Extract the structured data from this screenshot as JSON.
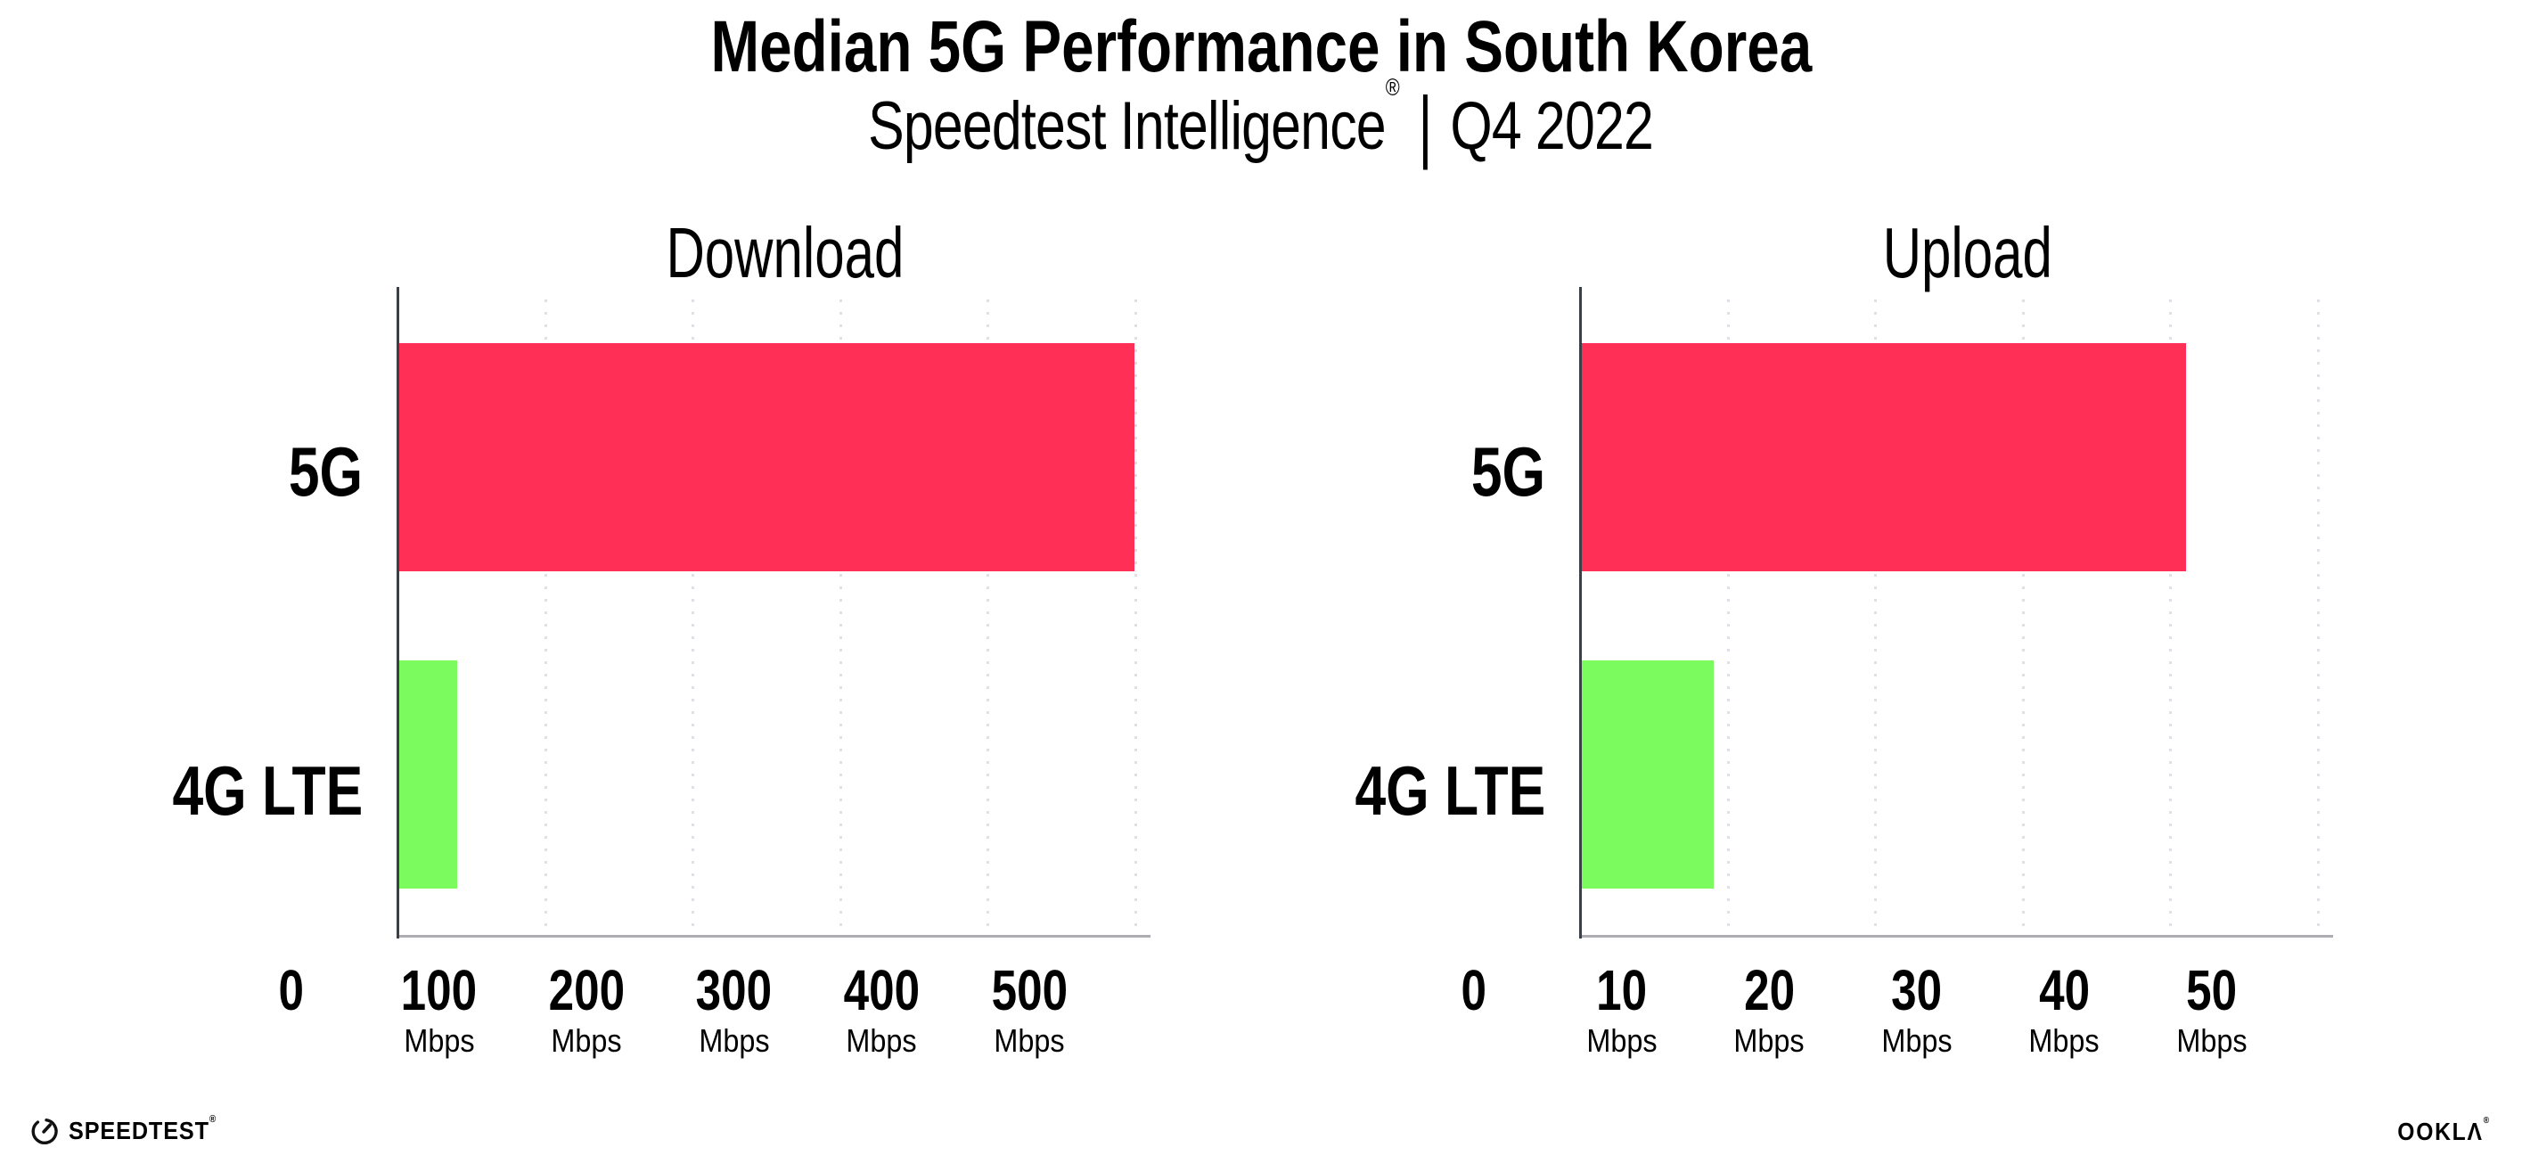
{
  "page": {
    "background": "#FFFFFF"
  },
  "header": {
    "title": "Median 5G Performance in South Korea",
    "subtitle_brand": "Speedtest Intelligence",
    "subtitle_reg": "®",
    "subtitle_divider": "|",
    "subtitle_period": "Q4 2022"
  },
  "colors": {
    "bar_5g": "#FF2F56",
    "bar_4g": "#7CFB5E",
    "gridline": "#DFDFE7",
    "axis_y": "#3A4046",
    "axis_x": "#ACACB2",
    "text": "#000000",
    "page_bg": "#FFFFFF"
  },
  "chart_data": [
    {
      "type": "bar",
      "orientation": "horizontal",
      "title": "Download",
      "categories": [
        "5G",
        "4G LTE"
      ],
      "values": [
        499,
        40
      ],
      "unit": "Mbps",
      "xlim": [
        0,
        500
      ],
      "xlabel": "",
      "ylabel": "",
      "grid": "dotted-vertical",
      "legend": "none",
      "bar_colors": [
        "#FF2F56",
        "#7CFB5E"
      ],
      "ticks": [
        {
          "label": "0",
          "unit": ""
        },
        {
          "label": "100",
          "unit": "Mbps"
        },
        {
          "label": "200",
          "unit": "Mbps"
        },
        {
          "label": "300",
          "unit": "Mbps"
        },
        {
          "label": "400",
          "unit": "Mbps"
        },
        {
          "label": "500",
          "unit": "Mbps"
        }
      ]
    },
    {
      "type": "bar",
      "orientation": "horizontal",
      "title": "Upload",
      "categories": [
        "5G",
        "4G LTE"
      ],
      "values": [
        41,
        9
      ],
      "unit": "Mbps",
      "xlim": [
        0,
        50
      ],
      "xlabel": "",
      "ylabel": "",
      "grid": "dotted-vertical",
      "legend": "none",
      "bar_colors": [
        "#FF2F56",
        "#7CFB5E"
      ],
      "ticks": [
        {
          "label": "0",
          "unit": ""
        },
        {
          "label": "10",
          "unit": "Mbps"
        },
        {
          "label": "20",
          "unit": "Mbps"
        },
        {
          "label": "30",
          "unit": "Mbps"
        },
        {
          "label": "40",
          "unit": "Mbps"
        },
        {
          "label": "50",
          "unit": "Mbps"
        }
      ]
    }
  ],
  "footer": {
    "speedtest_wordmark": "SPEEDTEST",
    "speedtest_reg": "®",
    "ookla_wordmark": "OOKLΛ",
    "ookla_reg": "®"
  }
}
